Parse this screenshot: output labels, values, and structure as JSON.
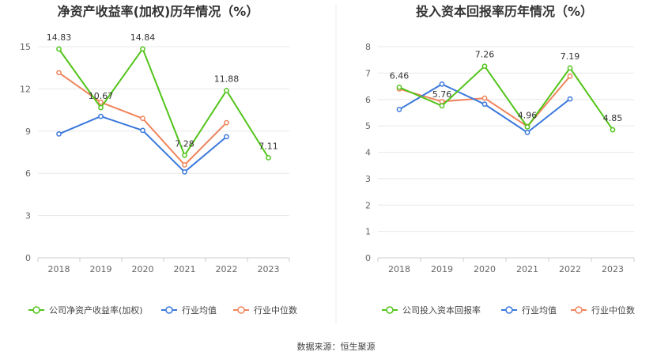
{
  "source_text": "数据来源：恒生聚源",
  "chart_data": [
    {
      "type": "line",
      "title": "净资产收益率(加权)历年情况（%）",
      "categories": [
        "2018",
        "2019",
        "2020",
        "2021",
        "2022",
        "2023"
      ],
      "ylim": [
        0,
        15
      ],
      "yticks": [
        0,
        3,
        6,
        9,
        12,
        15
      ],
      "grid": true,
      "legend_position": "bottom",
      "series": [
        {
          "name": "公司净资产收益率(加权)",
          "color": "#52c41a",
          "values": [
            14.83,
            10.67,
            14.84,
            7.28,
            11.88,
            7.11
          ],
          "labels": [
            "14.83",
            "10.67",
            "14.84",
            "7.28",
            "11.88",
            "7.11"
          ]
        },
        {
          "name": "行业均值",
          "color": "#3a78db",
          "values": [
            8.8,
            10.05,
            9.05,
            6.1,
            8.6,
            null
          ]
        },
        {
          "name": "行业中位数",
          "color": "#f0845c",
          "values": [
            13.15,
            11.05,
            9.9,
            6.6,
            9.6,
            null
          ]
        }
      ]
    },
    {
      "type": "line",
      "title": "投入资本回报率历年情况（%）",
      "categories": [
        "2018",
        "2019",
        "2020",
        "2021",
        "2022",
        "2023"
      ],
      "ylim": [
        0,
        8
      ],
      "yticks": [
        0,
        1,
        2,
        3,
        4,
        5,
        6,
        7,
        8
      ],
      "grid": true,
      "legend_position": "bottom",
      "series": [
        {
          "name": "公司投入资本回报率",
          "color": "#52c41a",
          "values": [
            6.46,
            5.76,
            7.26,
            4.96,
            7.19,
            4.85
          ],
          "labels": [
            "6.46",
            "5.76",
            "7.26",
            "4.96",
            "7.19",
            "4.85"
          ]
        },
        {
          "name": "行业均值",
          "color": "#3a78db",
          "values": [
            5.62,
            6.58,
            5.82,
            4.75,
            6.02,
            null
          ]
        },
        {
          "name": "行业中位数",
          "color": "#f0845c",
          "values": [
            6.4,
            5.92,
            6.05,
            4.98,
            6.88,
            null
          ]
        }
      ]
    }
  ]
}
